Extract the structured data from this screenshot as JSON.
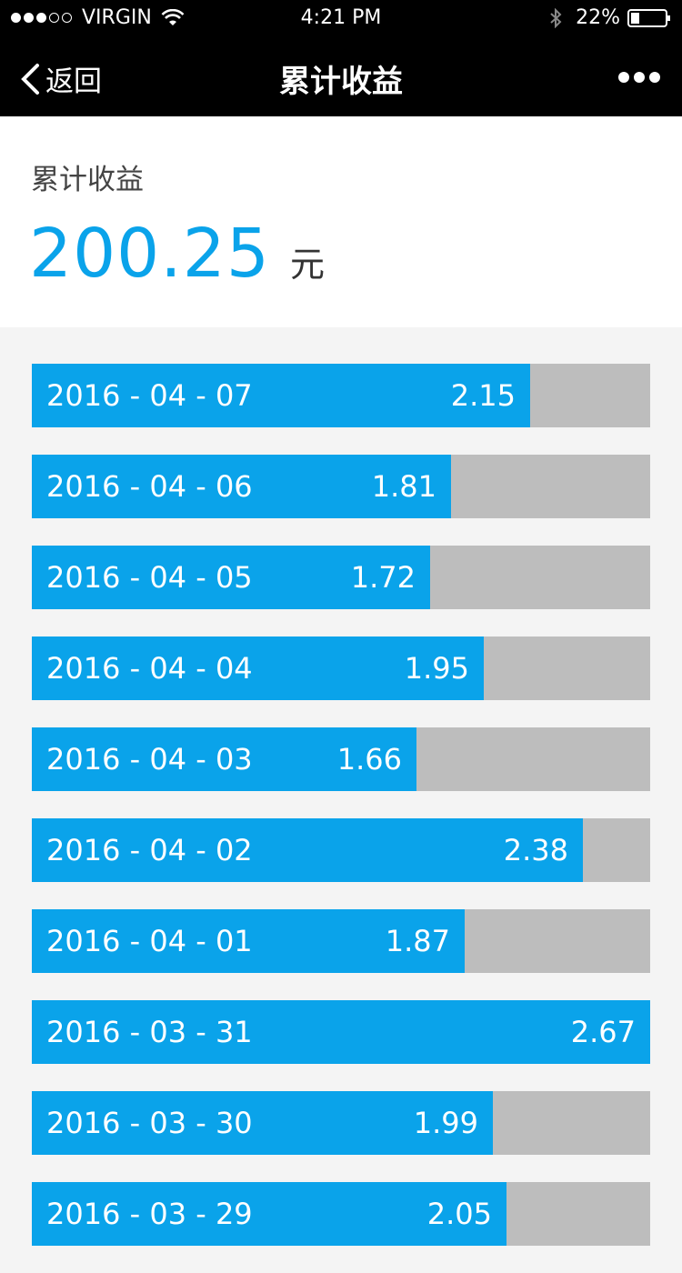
{
  "status_bar": {
    "signal": {
      "filled": 3,
      "total": 5
    },
    "carrier": "VIRGIN",
    "time": "4:21 PM",
    "battery_percent": "22%",
    "icons": [
      "signal-dots",
      "wifi-icon",
      "bluetooth-icon",
      "battery-icon"
    ]
  },
  "nav": {
    "back_label": "返回",
    "title": "累计收益",
    "icons": {
      "back": "chevron-left-icon",
      "more": "more-dots-icon"
    }
  },
  "summary": {
    "label": "累计收益",
    "value": "200.25",
    "unit": "元"
  },
  "colors": {
    "accent": "#0aa3ea",
    "bar_track": "#bdbdbd",
    "header_bg": "#000000",
    "list_bg": "#f4f4f4"
  },
  "chart_data": {
    "type": "bar",
    "orientation": "horizontal",
    "max_value": 2.67,
    "categories": [
      "2016 - 04 - 07",
      "2016 - 04 - 06",
      "2016 - 04 - 05",
      "2016 - 04 - 04",
      "2016 - 04 - 03",
      "2016 - 04 - 02",
      "2016 - 04 - 01",
      "2016 - 03 - 31",
      "2016 - 03 - 30",
      "2016 - 03 - 29"
    ],
    "values": [
      2.15,
      1.81,
      1.72,
      1.95,
      1.66,
      2.38,
      1.87,
      2.67,
      1.99,
      2.05
    ],
    "value_labels": [
      "2.15",
      "1.81",
      "1.72",
      "1.95",
      "1.66",
      "2.38",
      "1.87",
      "2.67",
      "1.99",
      "2.05"
    ]
  }
}
